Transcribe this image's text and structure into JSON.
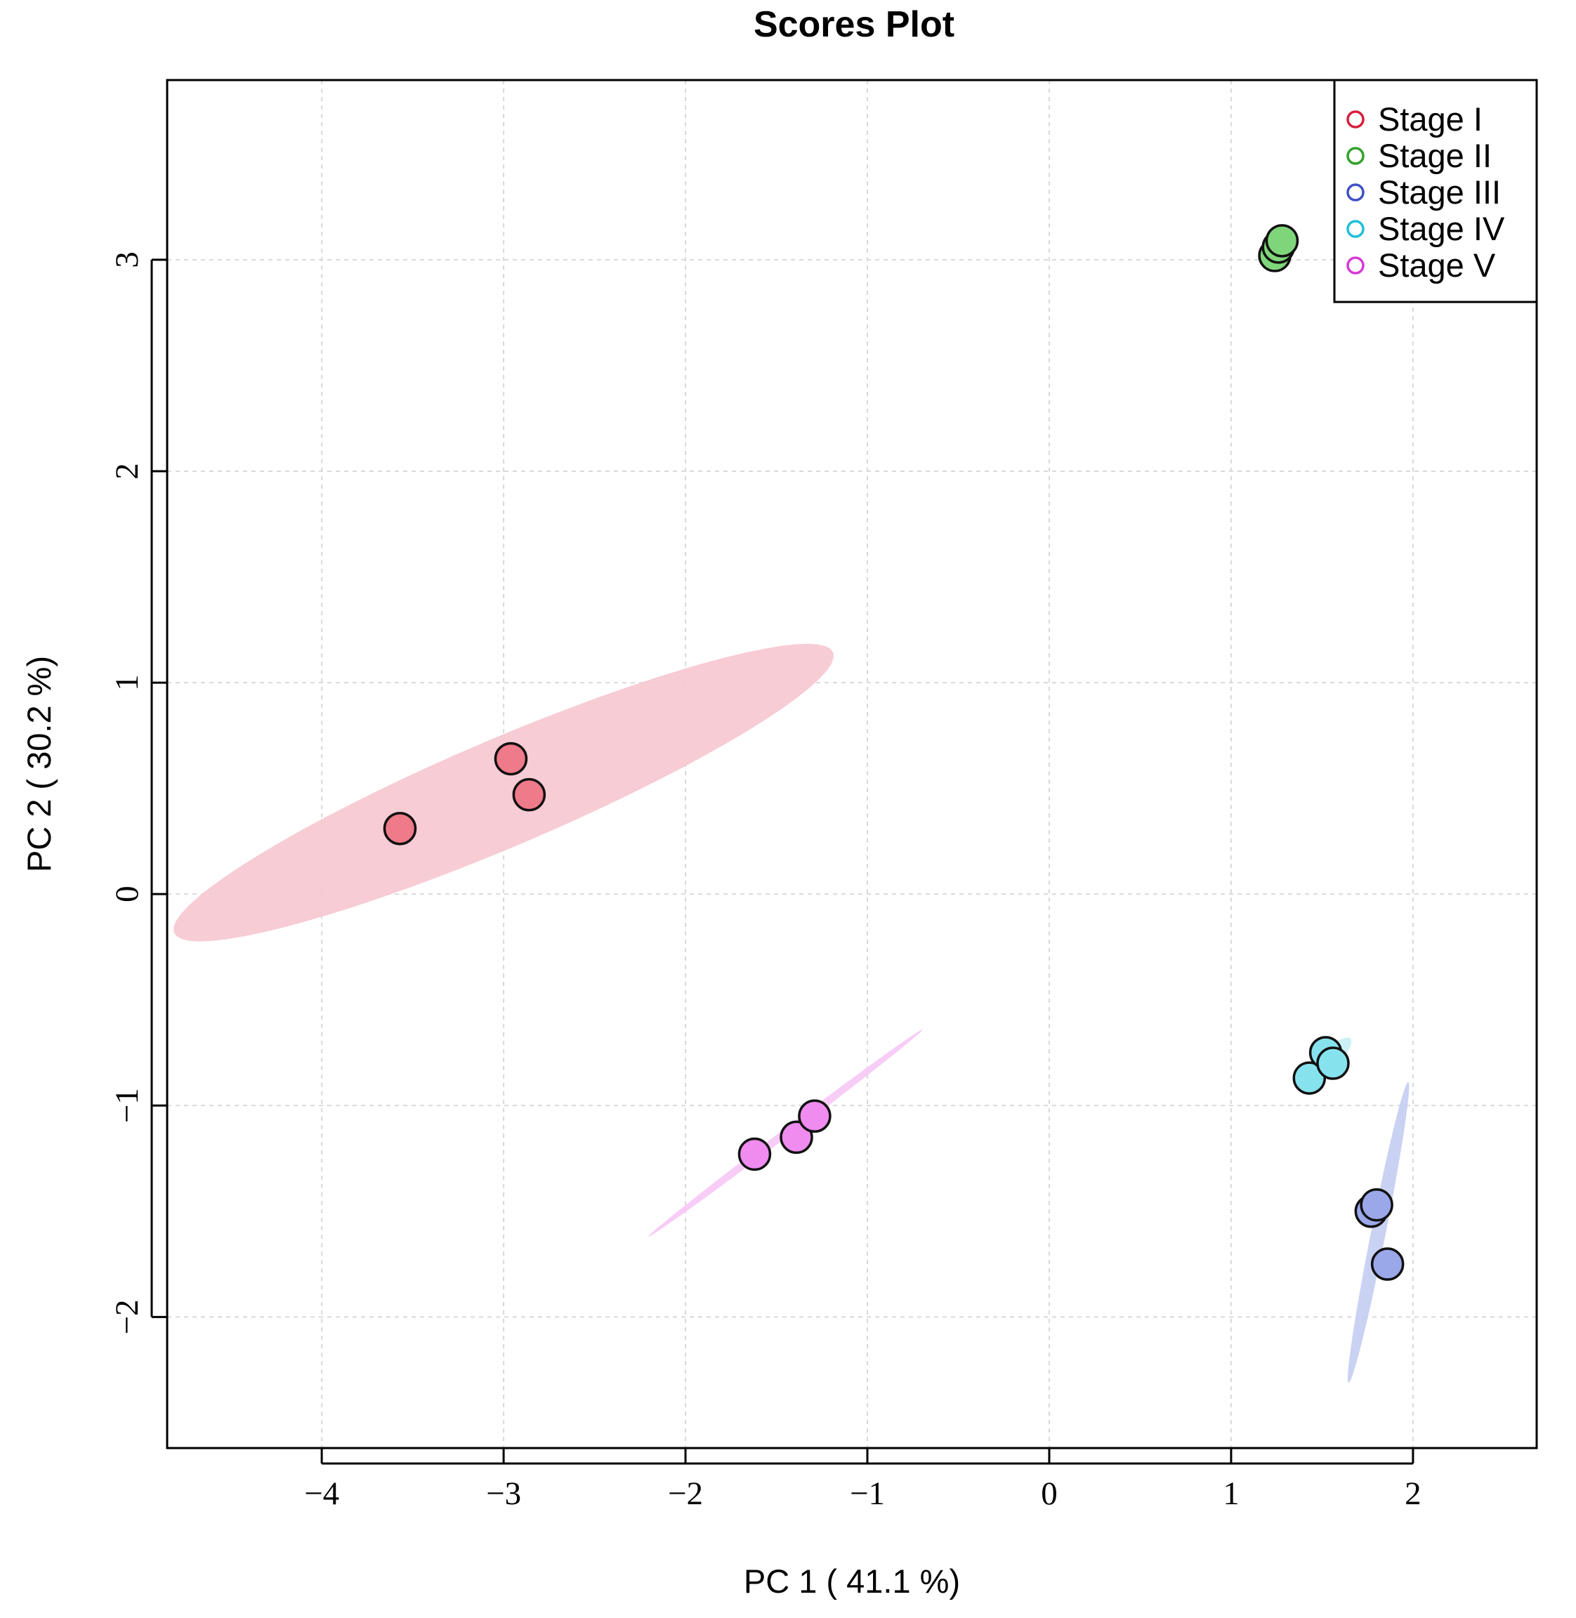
{
  "chart_data": {
    "type": "scatter",
    "title": "Scores Plot",
    "xlabel": "PC 1 ( 41.1 %)",
    "ylabel": "PC 2 ( 30.2 %)",
    "xlim": [
      -4.85,
      2.68
    ],
    "ylim": [
      -2.62,
      3.85
    ],
    "xticks": [
      -4,
      -3,
      -2,
      -1,
      0,
      1,
      2
    ],
    "yticks": [
      -2,
      -1,
      0,
      1,
      2,
      3
    ],
    "xtick_labels": [
      "−4",
      "−3",
      "−2",
      "−1",
      "0",
      "1",
      "2"
    ],
    "ytick_labels": [
      "−2",
      "−1",
      "0",
      "1",
      "2",
      "3"
    ],
    "grid": true,
    "legend_position": "top-right",
    "series": [
      {
        "name": "Stage I",
        "color": "#d61f3c",
        "fill": "#ee7a8a",
        "ellipse_fill": "#f6c6cf",
        "points": [
          [
            -3.57,
            0.31
          ],
          [
            -2.96,
            0.64
          ],
          [
            -2.86,
            0.47
          ]
        ],
        "ellipse": {
          "cx": -3.0,
          "cy": 0.48,
          "rx": 1.93,
          "ry": 0.26,
          "angle_deg": 20
        }
      },
      {
        "name": "Stage II",
        "color": "#33a02c",
        "fill": "#7fd67a",
        "ellipse_fill": "#bfe9b8",
        "points": [
          [
            1.24,
            3.02
          ],
          [
            1.26,
            3.06
          ],
          [
            1.28,
            3.09
          ]
        ],
        "ellipse": {
          "cx": 1.26,
          "cy": 3.06,
          "rx": 0.06,
          "ry": 0.02,
          "angle_deg": 55
        }
      },
      {
        "name": "Stage III",
        "color": "#3f51c4",
        "fill": "#9aa8ea",
        "ellipse_fill": "#c3cdf1",
        "points": [
          [
            1.77,
            -1.5
          ],
          [
            1.8,
            -1.47
          ],
          [
            1.86,
            -1.75
          ]
        ],
        "ellipse": {
          "cx": 1.81,
          "cy": -1.6,
          "rx": 0.73,
          "ry": 0.04,
          "angle_deg": 77
        }
      },
      {
        "name": "Stage IV",
        "color": "#1fbfd9",
        "fill": "#86e3ee",
        "ellipse_fill": "#c6f0f5",
        "points": [
          [
            1.43,
            -0.87
          ],
          [
            1.52,
            -0.75
          ],
          [
            1.56,
            -0.8
          ]
        ],
        "ellipse": {
          "cx": 1.52,
          "cy": -0.8,
          "rx": 0.18,
          "ry": 0.05,
          "angle_deg": 40
        }
      },
      {
        "name": "Stage V",
        "color": "#d63ad6",
        "fill": "#f08cf0",
        "ellipse_fill": "#f6c8f6",
        "points": [
          [
            -1.62,
            -1.23
          ],
          [
            -1.39,
            -1.15
          ],
          [
            -1.29,
            -1.05
          ]
        ],
        "ellipse": {
          "cx": -1.45,
          "cy": -1.13,
          "rx": 0.9,
          "ry": 0.02,
          "angle_deg": 33
        }
      }
    ]
  }
}
